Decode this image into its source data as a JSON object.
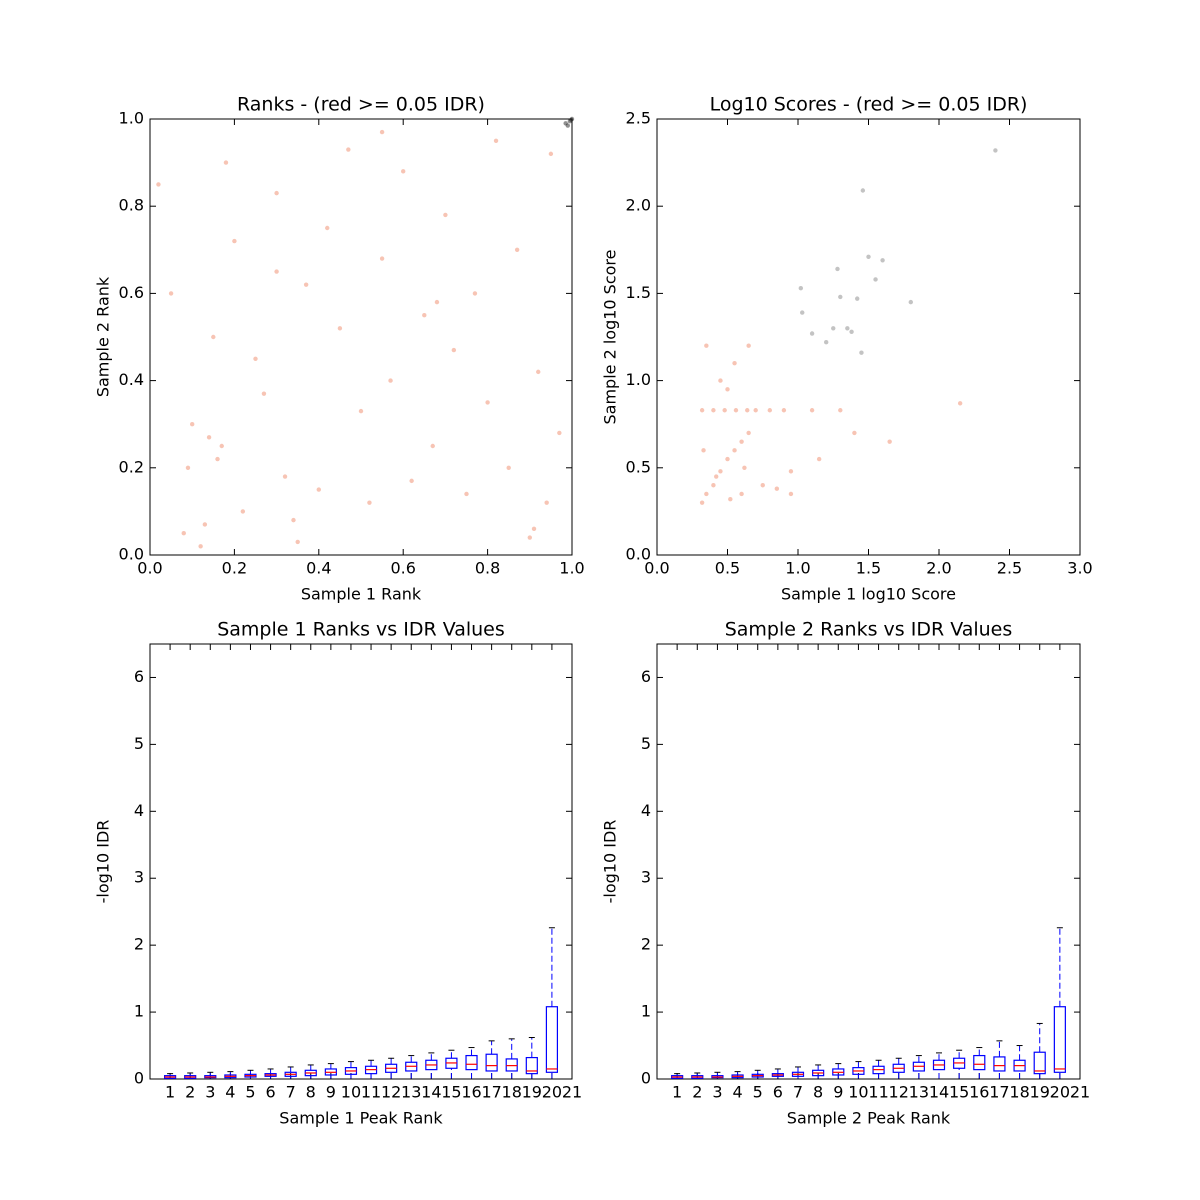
{
  "chart_data": [
    {
      "type": "scatter",
      "title": "Ranks - (red >= 0.05 IDR)",
      "xlabel": "Sample 1 Rank",
      "ylabel": "Sample 2 Rank",
      "xlim": [
        0,
        1
      ],
      "ylim": [
        0,
        1
      ],
      "xticks": [
        {
          "value": 0,
          "label": "0.0"
        },
        0.2,
        0.4,
        0.6,
        0.8,
        {
          "value": 1,
          "label": "1.0"
        }
      ],
      "yticks": [
        {
          "value": 0,
          "label": "0.0"
        },
        0.2,
        0.4,
        0.6,
        0.8,
        {
          "value": 1,
          "label": "1.0"
        }
      ],
      "series": [
        {
          "color": "#f08a6a",
          "x": [
            0.02,
            0.05,
            0.08,
            0.1,
            0.12,
            0.14,
            0.15,
            0.17,
            0.18,
            0.2,
            0.22,
            0.25,
            0.27,
            0.3,
            0.32,
            0.35,
            0.37,
            0.4,
            0.42,
            0.45,
            0.47,
            0.5,
            0.52,
            0.55,
            0.57,
            0.6,
            0.62,
            0.65,
            0.67,
            0.7,
            0.72,
            0.75,
            0.77,
            0.8,
            0.82,
            0.85,
            0.87,
            0.9,
            0.92,
            0.95,
            0.97,
            0.13,
            0.16,
            0.09,
            0.34,
            0.55,
            0.68,
            0.91,
            0.94,
            0.3
          ],
          "values": [
            0.85,
            0.6,
            0.05,
            0.3,
            0.02,
            0.27,
            0.5,
            0.25,
            0.9,
            0.72,
            0.1,
            0.45,
            0.37,
            0.83,
            0.18,
            0.03,
            0.62,
            0.15,
            0.75,
            0.52,
            0.93,
            0.33,
            0.12,
            0.68,
            0.4,
            0.88,
            0.17,
            0.55,
            0.25,
            0.78,
            0.47,
            0.14,
            0.6,
            0.35,
            0.95,
            0.2,
            0.7,
            0.04,
            0.42,
            0.92,
            0.28,
            0.07,
            0.22,
            0.2,
            0.08,
            0.97,
            0.58,
            0.06,
            0.12,
            0.65
          ]
        },
        {
          "color": "#222222",
          "x": [
            0.985,
            0.99,
            0.995,
            0.998,
            1.0
          ],
          "values": [
            0.99,
            0.985,
            0.995,
            0.998,
            1.0
          ]
        }
      ]
    },
    {
      "type": "scatter",
      "title": "Log10 Scores - (red >= 0.05 IDR)",
      "xlabel": "Sample 1 log10 Score",
      "ylabel": "Sample 2 log10 Score",
      "xlim": [
        0,
        3
      ],
      "ylim": [
        0,
        2.5
      ],
      "xticks": [
        {
          "value": 0,
          "label": "0.0"
        },
        0.5,
        {
          "value": 1,
          "label": "1.0"
        },
        1.5,
        {
          "value": 2,
          "label": "2.0"
        },
        2.5,
        {
          "value": 3,
          "label": "3.0"
        }
      ],
      "yticks": [
        {
          "value": 0,
          "label": "0.0"
        },
        0.5,
        {
          "value": 1,
          "label": "1.0"
        },
        1.5,
        {
          "value": 2,
          "label": "2.0"
        },
        2.5
      ],
      "series": [
        {
          "color": "#f08a6a",
          "x": [
            0.32,
            0.35,
            0.4,
            0.45,
            0.5,
            0.55,
            0.6,
            0.65,
            0.32,
            0.4,
            0.48,
            0.56,
            0.64,
            0.7,
            0.8,
            0.9,
            0.95,
            1.1,
            1.15,
            0.35,
            0.45,
            0.55,
            0.65,
            0.5,
            0.6,
            0.33,
            0.42,
            0.52,
            0.62,
            0.75,
            0.85,
            0.95,
            1.3,
            1.4,
            2.15,
            1.65
          ],
          "values": [
            0.3,
            0.35,
            0.4,
            0.48,
            0.55,
            0.6,
            0.65,
            0.7,
            0.83,
            0.83,
            0.83,
            0.83,
            0.83,
            0.83,
            0.83,
            0.83,
            0.48,
            0.83,
            0.55,
            1.2,
            1.0,
            1.1,
            1.2,
            0.95,
            0.35,
            0.6,
            0.45,
            0.32,
            0.5,
            0.4,
            0.38,
            0.35,
            0.83,
            0.7,
            0.87,
            0.65
          ]
        },
        {
          "color": "#888888",
          "x": [
            2.4,
            1.46,
            1.02,
            1.5,
            1.6,
            1.28,
            1.42,
            1.55,
            1.8,
            1.35,
            1.1,
            1.2,
            1.25,
            1.38,
            1.03,
            1.45,
            1.3
          ],
          "values": [
            2.32,
            2.09,
            1.53,
            1.71,
            1.69,
            1.64,
            1.47,
            1.58,
            1.45,
            1.3,
            1.27,
            1.22,
            1.3,
            1.28,
            1.39,
            1.16,
            1.48
          ]
        }
      ]
    },
    {
      "type": "box",
      "title": "Sample 1 Ranks vs IDR Values",
      "xlabel": "Sample 1 Peak Rank",
      "ylabel": "-log10 IDR",
      "xlim": [
        0,
        21
      ],
      "ylim": [
        0,
        6.5
      ],
      "xticks": [
        1,
        2,
        3,
        4,
        5,
        6,
        7,
        8,
        9,
        10,
        11,
        12,
        13,
        14,
        15,
        16,
        17,
        18,
        19,
        20,
        21
      ],
      "yticks": [
        0,
        1,
        2,
        3,
        4,
        5,
        6
      ],
      "whislo": [
        0,
        0,
        0,
        0,
        0,
        0,
        0,
        0,
        0,
        0,
        0,
        0,
        0,
        0,
        0,
        0,
        0,
        0,
        0,
        0
      ],
      "q1": [
        0.01,
        0.01,
        0.02,
        0.02,
        0.03,
        0.04,
        0.04,
        0.05,
        0.06,
        0.07,
        0.08,
        0.1,
        0.12,
        0.14,
        0.16,
        0.14,
        0.12,
        0.12,
        0.08,
        0.1
      ],
      "median": [
        0.03,
        0.03,
        0.03,
        0.04,
        0.05,
        0.06,
        0.07,
        0.09,
        0.1,
        0.12,
        0.14,
        0.16,
        0.19,
        0.21,
        0.24,
        0.22,
        0.2,
        0.2,
        0.12,
        0.15
      ],
      "q3": [
        0.05,
        0.05,
        0.05,
        0.06,
        0.07,
        0.08,
        0.1,
        0.13,
        0.15,
        0.17,
        0.19,
        0.22,
        0.25,
        0.28,
        0.31,
        0.35,
        0.37,
        0.3,
        0.32,
        1.08
      ],
      "whishi": [
        0.08,
        0.09,
        0.1,
        0.11,
        0.13,
        0.15,
        0.18,
        0.21,
        0.23,
        0.26,
        0.28,
        0.31,
        0.35,
        0.39,
        0.43,
        0.47,
        0.57,
        0.6,
        0.62,
        2.26
      ]
    },
    {
      "type": "box",
      "title": "Sample 2 Ranks vs IDR Values",
      "xlabel": "Sample 2 Peak Rank",
      "ylabel": "-log10 IDR",
      "xlim": [
        0,
        21
      ],
      "ylim": [
        0,
        6.5
      ],
      "xticks": [
        1,
        2,
        3,
        4,
        5,
        6,
        7,
        8,
        9,
        10,
        11,
        12,
        13,
        14,
        15,
        16,
        17,
        18,
        19,
        20,
        21
      ],
      "yticks": [
        0,
        1,
        2,
        3,
        4,
        5,
        6
      ],
      "whislo": [
        0,
        0,
        0,
        0,
        0,
        0,
        0,
        0,
        0,
        0,
        0,
        0,
        0,
        0,
        0,
        0,
        0,
        0,
        0,
        0
      ],
      "q1": [
        0.01,
        0.01,
        0.02,
        0.02,
        0.03,
        0.04,
        0.04,
        0.05,
        0.06,
        0.07,
        0.08,
        0.1,
        0.12,
        0.14,
        0.16,
        0.14,
        0.12,
        0.12,
        0.08,
        0.1
      ],
      "median": [
        0.03,
        0.03,
        0.03,
        0.04,
        0.05,
        0.06,
        0.07,
        0.09,
        0.1,
        0.12,
        0.14,
        0.16,
        0.19,
        0.21,
        0.24,
        0.22,
        0.2,
        0.2,
        0.12,
        0.15
      ],
      "q3": [
        0.05,
        0.05,
        0.05,
        0.06,
        0.07,
        0.08,
        0.1,
        0.13,
        0.15,
        0.17,
        0.19,
        0.22,
        0.25,
        0.28,
        0.31,
        0.35,
        0.33,
        0.28,
        0.4,
        1.08
      ],
      "whishi": [
        0.08,
        0.09,
        0.1,
        0.11,
        0.13,
        0.15,
        0.18,
        0.21,
        0.23,
        0.26,
        0.28,
        0.31,
        0.35,
        0.39,
        0.43,
        0.47,
        0.57,
        0.5,
        0.83,
        2.26
      ]
    }
  ]
}
